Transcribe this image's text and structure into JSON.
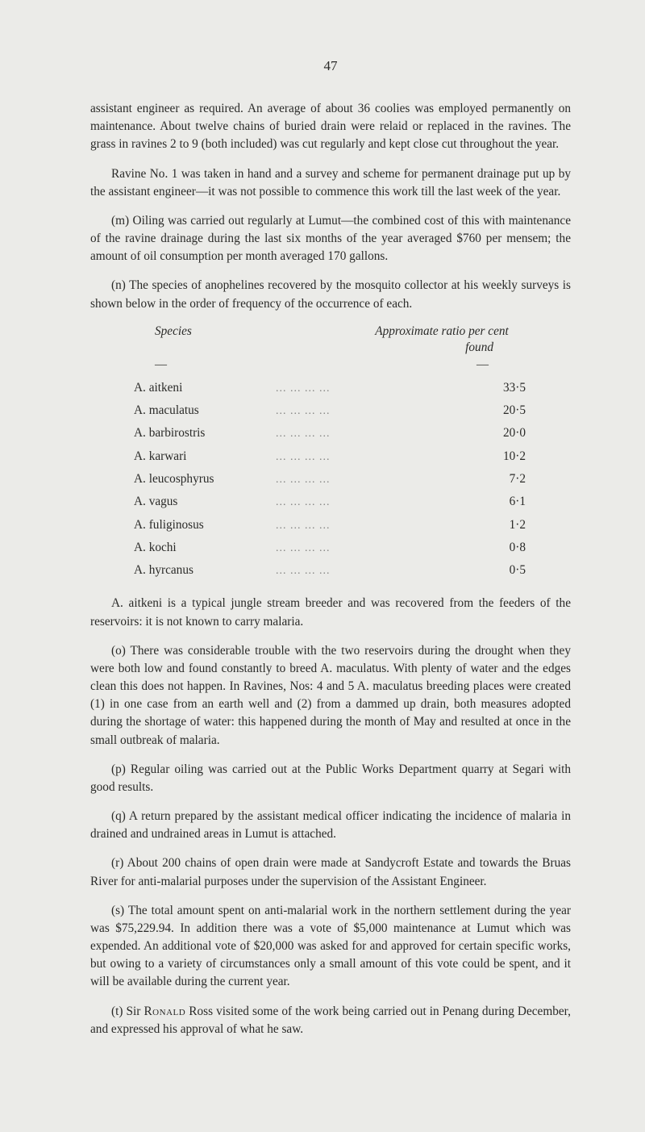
{
  "page_number": "47",
  "paragraphs": {
    "p1": "assistant engineer as required. An average of about 36 coolies was employed permanently on maintenance. About twelve chains of buried drain were relaid or replaced in the ravines. The grass in ravines 2 to 9 (both included) was cut regularly and kept close cut throughout the year.",
    "p2": "Ravine No. 1 was taken in hand and a survey and scheme for permanent drainage put up by the assistant engineer—it was not possible to commence this work till the last week of the year.",
    "p3": "(m) Oiling was carried out regularly at Lumut—the combined cost of this with maintenance of the ravine drainage during the last six months of the year averaged $760 per mensem; the amount of oil consumption per month averaged 170 gallons.",
    "p4": "(n) The species of anophelines recovered by the mosquito collector at his weekly surveys is shown below in the order of frequency of the occurrence of each.",
    "p5": "A. aitkeni is a typical jungle stream breeder and was recovered from the feeders of the reservoirs: it is not known to carry malaria.",
    "p6": "(o) There was considerable trouble with the two reservoirs during the drought when they were both low and found constantly to breed A. maculatus. With plenty of water and the edges clean this does not happen. In Ravines, Nos: 4 and 5 A. maculatus breeding places were created (1) in one case from an earth well and (2) from a dammed up drain, both measures adopted during the shortage of water: this happened during the month of May and resulted at once in the small outbreak of malaria.",
    "p7": "(p) Regular oiling was carried out at the Public Works Department quarry at Segari with good results.",
    "p8": "(q) A return prepared by the assistant medical officer indicating the incidence of malaria in drained and undrained areas in Lumut is attached.",
    "p9": "(r) About 200 chains of open drain were made at Sandycroft Estate and towards the Bruas River for anti-malarial purposes under the supervision of the Assistant Engineer.",
    "p10": "(s) The total amount spent on anti-malarial work in the northern settlement during the year was $75,229.94. In addition there was a vote of $5,000 maintenance at Lumut which was expended. An additional vote of $20,000 was asked for and approved for certain specific works, but owing to a variety of circumstances only a small amount of this vote could be spent, and it will be available during the current year.",
    "p11_prefix": "(t) Sir ",
    "p11_name": "Ronald",
    "p11_suffix": " Ross visited some of the work being carried out in Penang during December, and expressed his approval of what he saw."
  },
  "table": {
    "header_left": "Species",
    "header_right": "Approximate ratio per cent",
    "header_found": "found",
    "dash": "—",
    "rows": [
      {
        "name": "A. aitkeni",
        "ratio": "33·5"
      },
      {
        "name": "A. maculatus",
        "ratio": "20·5"
      },
      {
        "name": "A. barbirostris",
        "ratio": "20·0"
      },
      {
        "name": "A. karwari",
        "ratio": "10·2"
      },
      {
        "name": "A. leucosphyrus",
        "ratio": "7·2"
      },
      {
        "name": "A. vagus",
        "ratio": "6·1"
      },
      {
        "name": "A. fuliginosus",
        "ratio": "1·2"
      },
      {
        "name": "A. kochi",
        "ratio": "0·8"
      },
      {
        "name": "A. hyrcanus",
        "ratio": "0·5"
      }
    ]
  },
  "dots": "...              ...              ...              ..."
}
